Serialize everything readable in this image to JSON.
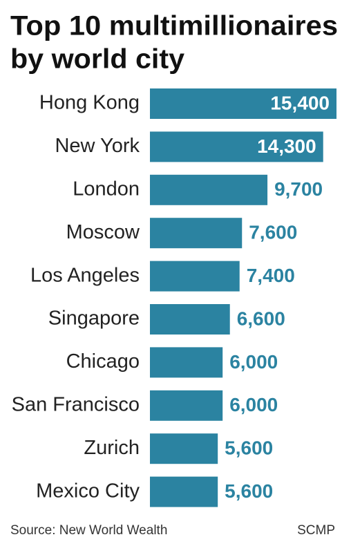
{
  "chart_data": {
    "type": "bar",
    "orientation": "horizontal",
    "title": [
      "Top 10 multimillionaires",
      "by world city"
    ],
    "categories": [
      "Hong Kong",
      "New York",
      "London",
      "Moscow",
      "Los Angeles",
      "Singapore",
      "Chicago",
      "San Francisco",
      "Zurich",
      "Mexico City"
    ],
    "values": [
      15400,
      14300,
      9700,
      7600,
      7400,
      6600,
      6000,
      6000,
      5600,
      5600
    ],
    "value_labels": [
      "15,400",
      "14,300",
      "9,700",
      "7,600",
      "7,400",
      "6,600",
      "6,000",
      "6,000",
      "5,600",
      "5,600"
    ],
    "color": "#2b83a1",
    "source": "Source: New World Wealth",
    "credit": "SCMP"
  }
}
